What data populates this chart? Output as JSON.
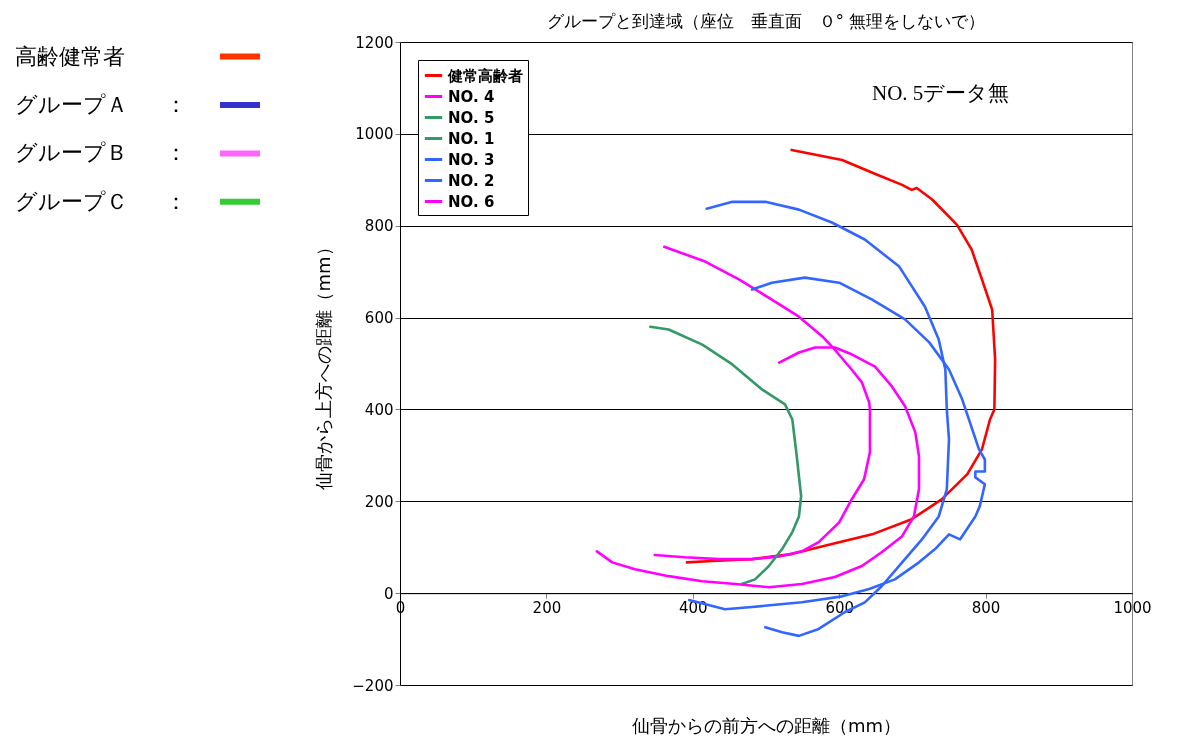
{
  "chart_data": [
    {
      "type": "other",
      "categories": [
        "高齢健常者",
        "グループＡ",
        "グループＢ",
        "グループＣ"
      ],
      "annotations": [
        null,
        "：",
        "：",
        "："
      ],
      "colors": [
        "#ff3300",
        "#3333cc",
        "#ff66ff",
        "#33cc33"
      ]
    },
    {
      "type": "line",
      "title": "グループと到達域（座位　垂直面　０° 無理をしないで）",
      "xlabel": "仙骨からの前方への距離（mm）",
      "ylabel": "仙骨から上方への距離（mm）",
      "xlim": [
        0,
        1000
      ],
      "ylim": [
        -200,
        1200
      ],
      "xticks": [
        0,
        200,
        400,
        600,
        800,
        1000
      ],
      "yticks": [
        -200,
        0,
        200,
        400,
        600,
        800,
        1000,
        1200
      ],
      "grid": "y",
      "legend": "top left",
      "marker": "none",
      "line_style": "solid",
      "annotations": [
        "NO. 5データ無"
      ],
      "series": [
        {
          "name": "健常高齢者",
          "color": "#ff0000",
          "x": [
            535,
            604,
            652,
            686,
            699,
            706,
            727,
            761,
            781,
            795,
            809,
            813,
            812,
            806,
            795,
            775,
            740,
            699,
            645,
            590,
            535,
            481,
            426,
            392
          ],
          "values": [
            965,
            943,
            911,
            889,
            878,
            882,
            857,
            802,
            748,
            683,
            617,
            509,
            400,
            378,
            313,
            259,
            204,
            161,
            128,
            107,
            85,
            74,
            70,
            67
          ]
        },
        {
          "name": "NO. 4",
          "color": "#ff00ff",
          "x": [
            361,
            417,
            463,
            508,
            545,
            577,
            594,
            617,
            631,
            641,
            642,
            642,
            634,
            617,
            600,
            572,
            549,
            518,
            481,
            436,
            389,
            348
          ],
          "values": [
            754,
            722,
            683,
            639,
            602,
            559,
            530,
            487,
            459,
            415,
            400,
            307,
            248,
            204,
            154,
            111,
            91,
            80,
            74,
            74,
            78,
            83
          ]
        },
        {
          "name": "NO. 5",
          "color": "#339966"
        },
        {
          "name": "NO. 1",
          "color": "#339966",
          "x": [
            342,
            367,
            413,
            454,
            495,
            526,
            536,
            542,
            548,
            545,
            536,
            522,
            504,
            485,
            467
          ],
          "values": [
            580,
            574,
            541,
            498,
            443,
            411,
            378,
            298,
            211,
            167,
            133,
            96,
            59,
            30,
            20
          ]
        },
        {
          "name": "NO. 3",
          "color": "#3366ff",
          "x": [
            419,
            454,
            499,
            545,
            590,
            635,
            682,
            717,
            736,
            745,
            747,
            750,
            747,
            736,
            713,
            686,
            658,
            635,
            608,
            572,
            545,
            522,
            499
          ],
          "values": [
            837,
            852,
            852,
            835,
            807,
            770,
            711,
            624,
            552,
            487,
            400,
            335,
            226,
            167,
            117,
            67,
            15,
            -20,
            -41,
            -78,
            -93,
            -85,
            -74
          ]
        },
        {
          "name": "NO. 2",
          "color": "#3366ff",
          "x": [
            481,
            508,
            553,
            600,
            645,
            690,
            723,
            750,
            768,
            791,
            799,
            799,
            786,
            786,
            799,
            792,
            786,
            765,
            750,
            731,
            709,
            676,
            641,
            604,
            549,
            481,
            444,
            395
          ],
          "values": [
            661,
            676,
            687,
            676,
            639,
            596,
            546,
            487,
            422,
            313,
            291,
            265,
            265,
            252,
            237,
            189,
            167,
            117,
            128,
            96,
            67,
            30,
            9,
            -7,
            -20,
            -30,
            -35,
            -15
          ]
        },
        {
          "name": "NO. 6",
          "color": "#ff00ff",
          "x": [
            518,
            545,
            567,
            594,
            617,
            649,
            672,
            690,
            704,
            709,
            709,
            702,
            686,
            658,
            631,
            594,
            549,
            504,
            458,
            413,
            367,
            321,
            290,
            269
          ],
          "values": [
            502,
            524,
            535,
            535,
            520,
            493,
            450,
            407,
            350,
            298,
            226,
            167,
            124,
            89,
            59,
            35,
            20,
            13,
            20,
            26,
            37,
            52,
            67,
            91
          ]
        }
      ]
    }
  ]
}
